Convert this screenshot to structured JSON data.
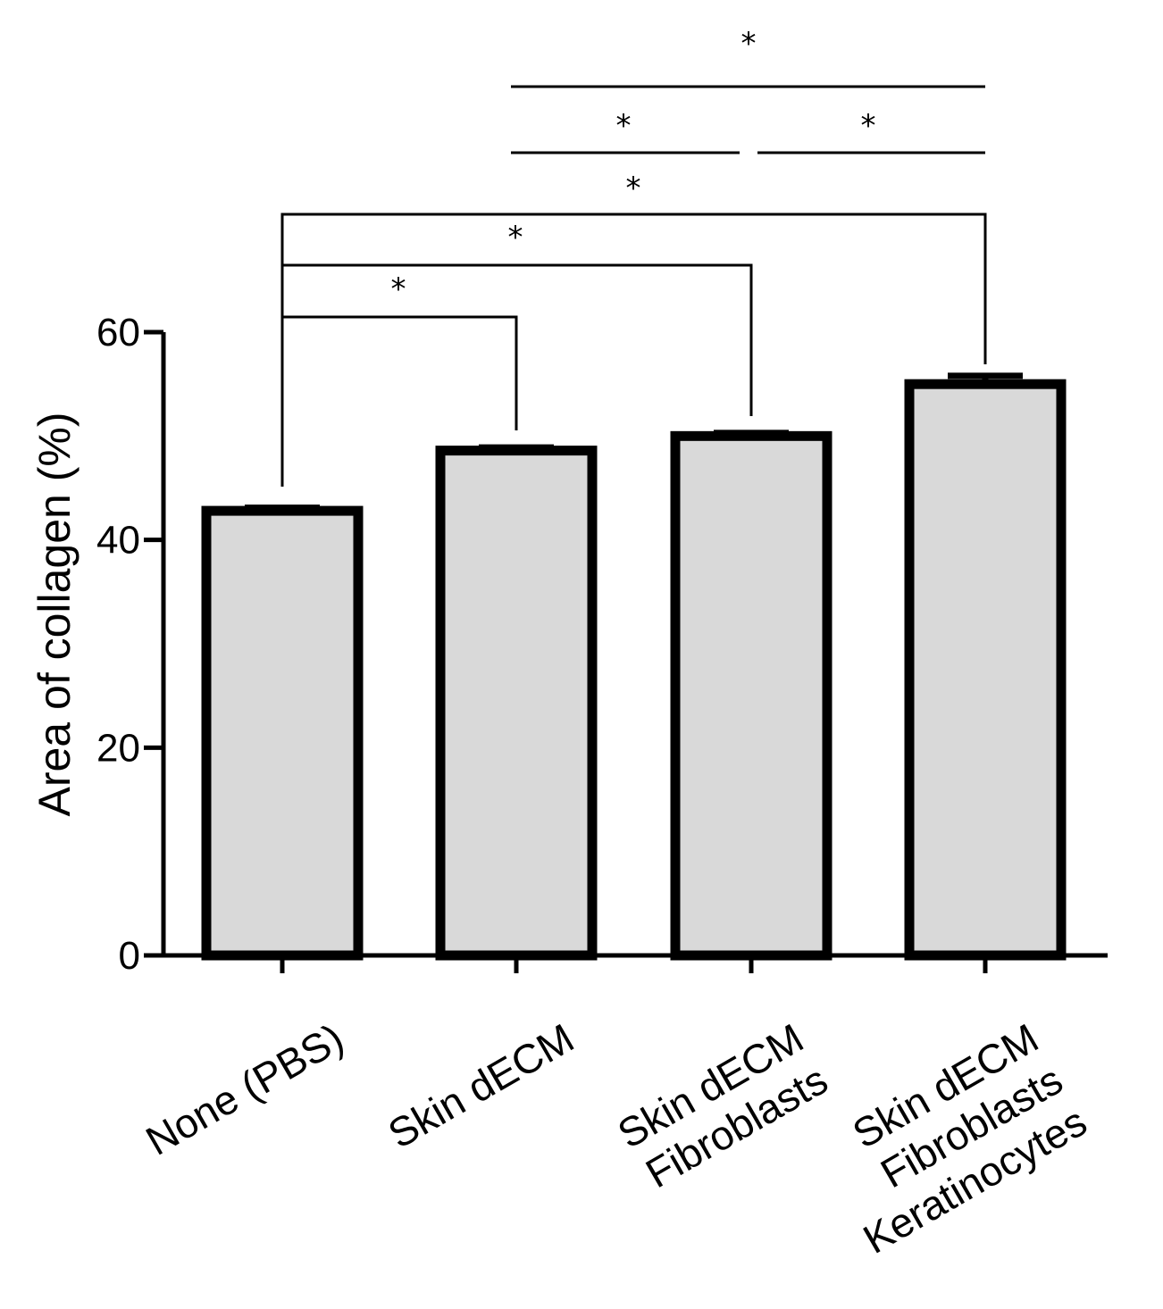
{
  "chart_data": {
    "type": "bar",
    "ylabel": "Area of collagen (%)",
    "xlabel": "",
    "ylim": [
      0,
      60
    ],
    "yticks": [
      "0",
      "20",
      "40",
      "60"
    ],
    "categories": [
      [
        "None (PBS)"
      ],
      [
        "Skin dECM"
      ],
      [
        "Skin dECM",
        "Fibroblasts"
      ],
      [
        "Skin dECM",
        "Fibroblasts",
        "Keratinocytes"
      ]
    ],
    "values": [
      42.8,
      48.6,
      50.0,
      55.0
    ],
    "errors": [
      0.3,
      0.3,
      0.3,
      0.8
    ],
    "bar_color": "#d9d9d9",
    "edge_color": "#000000",
    "significance": [
      {
        "from": 0,
        "to": 1,
        "label": "*"
      },
      {
        "from": 0,
        "to": 2,
        "label": "*"
      },
      {
        "from": 0,
        "to": 3,
        "label": "*"
      },
      {
        "from": 1,
        "to": 2,
        "label": "*"
      },
      {
        "from": 2,
        "to": 3,
        "label": "*"
      },
      {
        "from": 1,
        "to": 3,
        "label": "*"
      }
    ]
  }
}
